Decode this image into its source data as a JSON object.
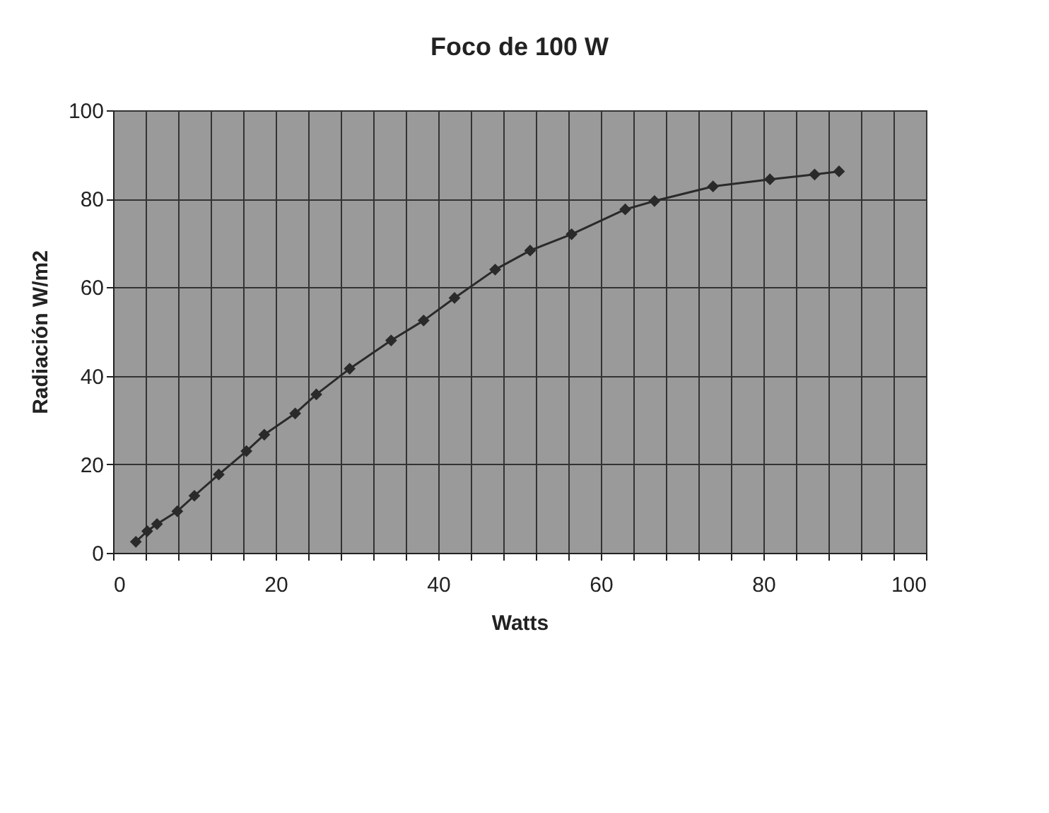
{
  "chart_data": {
    "type": "line",
    "title": "Foco de 100 W",
    "xlabel": "Watts",
    "ylabel": "Radiación W/m2",
    "x": [
      2.8,
      4.2,
      5.4,
      7.9,
      10.0,
      13.0,
      16.4,
      18.6,
      22.4,
      25.0,
      29.1,
      34.2,
      38.2,
      42.0,
      47.0,
      51.3,
      56.4,
      63.0,
      66.6,
      73.8,
      80.8,
      86.3,
      89.3
    ],
    "series": [
      {
        "color": "#2a2a2a",
        "values": [
          2.5,
          4.9,
          6.5,
          9.4,
          12.9,
          17.7,
          23.0,
          26.7,
          31.5,
          35.8,
          41.6,
          48.0,
          52.5,
          57.6,
          64.0,
          68.3,
          72.0,
          77.6,
          79.5,
          82.8,
          84.4,
          85.5,
          86.2
        ]
      }
    ],
    "xlim": [
      0,
      100
    ],
    "ylim": [
      0,
      100
    ],
    "xticks": [
      0,
      {
        "value": 4,
        "label": null
      },
      {
        "value": 8,
        "label": null
      },
      {
        "value": 12,
        "label": null
      },
      {
        "value": 16,
        "label": null
      },
      20,
      {
        "value": 24,
        "label": null
      },
      {
        "value": 28,
        "label": null
      },
      {
        "value": 32,
        "label": null
      },
      {
        "value": 36,
        "label": null
      },
      40,
      {
        "value": 44,
        "label": null
      },
      {
        "value": 48,
        "label": null
      },
      {
        "value": 52,
        "label": null
      },
      {
        "value": 56,
        "label": null
      },
      60,
      {
        "value": 64,
        "label": null
      },
      {
        "value": 68,
        "label": null
      },
      {
        "value": 72,
        "label": null
      },
      {
        "value": 76,
        "label": null
      },
      80,
      {
        "value": 84,
        "label": null
      },
      {
        "value": 88,
        "label": null
      },
      {
        "value": 92,
        "label": null
      },
      {
        "value": 96,
        "label": null
      },
      100
    ],
    "yticks": [
      0,
      20,
      40,
      60,
      80,
      100
    ],
    "grid": true,
    "marker": "diamond",
    "line_style": "solid",
    "legend": false
  }
}
